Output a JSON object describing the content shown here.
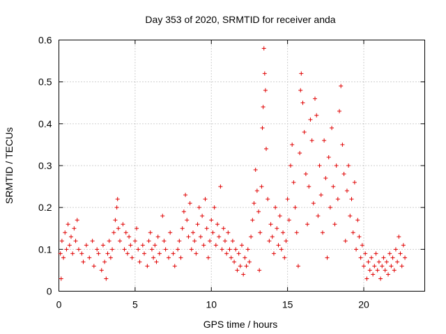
{
  "chart_data": {
    "type": "scatter",
    "title": "Day 353 of 2020, SRMTID for receiver anda",
    "xlabel": "GPS time / hours",
    "ylabel": "SRMTID / TECUs",
    "xlim": [
      0,
      24
    ],
    "ylim": [
      0,
      0.6
    ],
    "xticks": [
      0,
      5,
      10,
      15,
      20
    ],
    "xtick_labels": [
      "0",
      "5",
      "10",
      "15",
      "20"
    ],
    "yticks": [
      0,
      0.1,
      0.2,
      0.3,
      0.4,
      0.5,
      0.6
    ],
    "ytick_labels": [
      "0",
      "0.1",
      "0.2",
      "0.3",
      "0.4",
      "0.5",
      "0.6"
    ],
    "grid": true,
    "marker": "+",
    "marker_color": "#e00000",
    "series": [
      {
        "name": "SRMTID",
        "points": [
          [
            0.1,
            0.09
          ],
          [
            0.15,
            0.03
          ],
          [
            0.2,
            0.12
          ],
          [
            0.3,
            0.08
          ],
          [
            0.4,
            0.14
          ],
          [
            0.5,
            0.1
          ],
          [
            0.6,
            0.16
          ],
          [
            0.7,
            0.11
          ],
          [
            0.8,
            0.13
          ],
          [
            0.9,
            0.09
          ],
          [
            1.0,
            0.15
          ],
          [
            1.1,
            0.12
          ],
          [
            1.2,
            0.17
          ],
          [
            1.3,
            0.1
          ],
          [
            1.5,
            0.09
          ],
          [
            1.6,
            0.07
          ],
          [
            1.8,
            0.11
          ],
          [
            2.0,
            0.08
          ],
          [
            2.2,
            0.12
          ],
          [
            2.3,
            0.06
          ],
          [
            2.5,
            0.1
          ],
          [
            2.6,
            0.09
          ],
          [
            2.8,
            0.05
          ],
          [
            2.9,
            0.11
          ],
          [
            3.0,
            0.07
          ],
          [
            3.1,
            0.03
          ],
          [
            3.2,
            0.09
          ],
          [
            3.3,
            0.12
          ],
          [
            3.4,
            0.08
          ],
          [
            3.5,
            0.1
          ],
          [
            3.6,
            0.14
          ],
          [
            3.7,
            0.17
          ],
          [
            3.8,
            0.2
          ],
          [
            3.85,
            0.22
          ],
          [
            3.9,
            0.15
          ],
          [
            4.0,
            0.12
          ],
          [
            4.2,
            0.16
          ],
          [
            4.3,
            0.1
          ],
          [
            4.4,
            0.14
          ],
          [
            4.5,
            0.09
          ],
          [
            4.6,
            0.13
          ],
          [
            4.7,
            0.11
          ],
          [
            4.8,
            0.08
          ],
          [
            5.0,
            0.12
          ],
          [
            5.1,
            0.15
          ],
          [
            5.2,
            0.1
          ],
          [
            5.3,
            0.07
          ],
          [
            5.5,
            0.11
          ],
          [
            5.6,
            0.09
          ],
          [
            5.8,
            0.06
          ],
          [
            5.9,
            0.12
          ],
          [
            6.0,
            0.14
          ],
          [
            6.1,
            0.1
          ],
          [
            6.2,
            0.08
          ],
          [
            6.3,
            0.11
          ],
          [
            6.4,
            0.07
          ],
          [
            6.5,
            0.13
          ],
          [
            6.6,
            0.09
          ],
          [
            6.8,
            0.18
          ],
          [
            6.9,
            0.12
          ],
          [
            7.0,
            0.1
          ],
          [
            7.2,
            0.08
          ],
          [
            7.3,
            0.14
          ],
          [
            7.5,
            0.09
          ],
          [
            7.6,
            0.06
          ],
          [
            7.8,
            0.1
          ],
          [
            7.9,
            0.12
          ],
          [
            8.0,
            0.08
          ],
          [
            8.1,
            0.15
          ],
          [
            8.2,
            0.19
          ],
          [
            8.3,
            0.23
          ],
          [
            8.4,
            0.17
          ],
          [
            8.5,
            0.13
          ],
          [
            8.6,
            0.21
          ],
          [
            8.7,
            0.1
          ],
          [
            8.8,
            0.14
          ],
          [
            8.9,
            0.12
          ],
          [
            9.0,
            0.09
          ],
          [
            9.1,
            0.16
          ],
          [
            9.2,
            0.2
          ],
          [
            9.3,
            0.13
          ],
          [
            9.4,
            0.18
          ],
          [
            9.5,
            0.11
          ],
          [
            9.6,
            0.22
          ],
          [
            9.7,
            0.15
          ],
          [
            9.8,
            0.08
          ],
          [
            9.9,
            0.12
          ],
          [
            10.0,
            0.17
          ],
          [
            10.1,
            0.14
          ],
          [
            10.2,
            0.2
          ],
          [
            10.3,
            0.11
          ],
          [
            10.4,
            0.16
          ],
          [
            10.5,
            0.13
          ],
          [
            10.6,
            0.25
          ],
          [
            10.7,
            0.1
          ],
          [
            10.8,
            0.15
          ],
          [
            10.9,
            0.12
          ],
          [
            11.0,
            0.09
          ],
          [
            11.1,
            0.14
          ],
          [
            11.2,
            0.1
          ],
          [
            11.3,
            0.08
          ],
          [
            11.4,
            0.12
          ],
          [
            11.5,
            0.07
          ],
          [
            11.6,
            0.1
          ],
          [
            11.7,
            0.05
          ],
          [
            11.8,
            0.09
          ],
          [
            11.9,
            0.06
          ],
          [
            12.0,
            0.11
          ],
          [
            12.1,
            0.04
          ],
          [
            12.2,
            0.08
          ],
          [
            12.3,
            0.06
          ],
          [
            12.4,
            0.1
          ],
          [
            12.5,
            0.07
          ],
          [
            12.6,
            0.13
          ],
          [
            12.7,
            0.17
          ],
          [
            12.8,
            0.21
          ],
          [
            12.9,
            0.29
          ],
          [
            13.0,
            0.24
          ],
          [
            13.1,
            0.19
          ],
          [
            13.15,
            0.05
          ],
          [
            13.2,
            0.14
          ],
          [
            13.3,
            0.25
          ],
          [
            13.35,
            0.39
          ],
          [
            13.4,
            0.44
          ],
          [
            13.45,
            0.58
          ],
          [
            13.5,
            0.52
          ],
          [
            13.55,
            0.48
          ],
          [
            13.6,
            0.34
          ],
          [
            13.7,
            0.22
          ],
          [
            13.8,
            0.12
          ],
          [
            13.9,
            0.16
          ],
          [
            14.0,
            0.13
          ],
          [
            14.1,
            0.09
          ],
          [
            14.2,
            0.2
          ],
          [
            14.3,
            0.15
          ],
          [
            14.4,
            0.11
          ],
          [
            14.5,
            0.18
          ],
          [
            14.6,
            0.1
          ],
          [
            14.7,
            0.14
          ],
          [
            14.8,
            0.08
          ],
          [
            14.9,
            0.12
          ],
          [
            15.0,
            0.22
          ],
          [
            15.1,
            0.17
          ],
          [
            15.2,
            0.3
          ],
          [
            15.3,
            0.35
          ],
          [
            15.4,
            0.26
          ],
          [
            15.5,
            0.2
          ],
          [
            15.6,
            0.14
          ],
          [
            15.7,
            0.06
          ],
          [
            15.8,
            0.33
          ],
          [
            15.85,
            0.48
          ],
          [
            15.9,
            0.52
          ],
          [
            16.0,
            0.45
          ],
          [
            16.1,
            0.38
          ],
          [
            16.2,
            0.28
          ],
          [
            16.3,
            0.16
          ],
          [
            16.4,
            0.25
          ],
          [
            16.5,
            0.41
          ],
          [
            16.6,
            0.36
          ],
          [
            16.7,
            0.21
          ],
          [
            16.8,
            0.46
          ],
          [
            16.9,
            0.42
          ],
          [
            17.0,
            0.18
          ],
          [
            17.1,
            0.3
          ],
          [
            17.2,
            0.23
          ],
          [
            17.3,
            0.14
          ],
          [
            17.4,
            0.36
          ],
          [
            17.5,
            0.27
          ],
          [
            17.6,
            0.08
          ],
          [
            17.7,
            0.32
          ],
          [
            17.8,
            0.2
          ],
          [
            17.9,
            0.39
          ],
          [
            18.0,
            0.25
          ],
          [
            18.1,
            0.16
          ],
          [
            18.2,
            0.3
          ],
          [
            18.3,
            0.22
          ],
          [
            18.4,
            0.43
          ],
          [
            18.5,
            0.49
          ],
          [
            18.6,
            0.35
          ],
          [
            18.7,
            0.28
          ],
          [
            18.8,
            0.12
          ],
          [
            18.9,
            0.24
          ],
          [
            19.0,
            0.3
          ],
          [
            19.1,
            0.18
          ],
          [
            19.2,
            0.22
          ],
          [
            19.3,
            0.14
          ],
          [
            19.4,
            0.26
          ],
          [
            19.5,
            0.1
          ],
          [
            19.6,
            0.17
          ],
          [
            19.7,
            0.13
          ],
          [
            19.8,
            0.08
          ],
          [
            19.9,
            0.11
          ],
          [
            20.0,
            0.06
          ],
          [
            20.1,
            0.09
          ],
          [
            20.2,
            0.03
          ],
          [
            20.3,
            0.07
          ],
          [
            20.4,
            0.05
          ],
          [
            20.5,
            0.08
          ],
          [
            20.6,
            0.04
          ],
          [
            20.7,
            0.06
          ],
          [
            20.8,
            0.09
          ],
          [
            20.9,
            0.05
          ],
          [
            21.0,
            0.07
          ],
          [
            21.1,
            0.03
          ],
          [
            21.2,
            0.06
          ],
          [
            21.3,
            0.08
          ],
          [
            21.4,
            0.05
          ],
          [
            21.5,
            0.07
          ],
          [
            21.6,
            0.04
          ],
          [
            21.7,
            0.09
          ],
          [
            21.8,
            0.06
          ],
          [
            21.9,
            0.08
          ],
          [
            22.0,
            0.05
          ],
          [
            22.1,
            0.1
          ],
          [
            22.2,
            0.07
          ],
          [
            22.3,
            0.13
          ],
          [
            22.4,
            0.09
          ],
          [
            22.5,
            0.06
          ],
          [
            22.6,
            0.11
          ],
          [
            22.7,
            0.08
          ]
        ]
      }
    ]
  }
}
